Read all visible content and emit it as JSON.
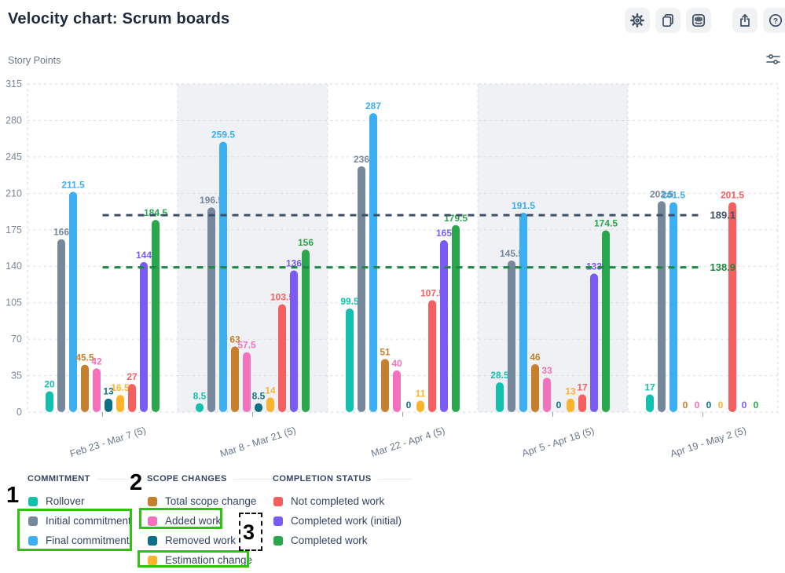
{
  "header": {
    "title": "Velocity chart: Scrum boards",
    "toolbar": {
      "icons": [
        "settings-icon",
        "copy-icon",
        "intercom-icon",
        "export-icon",
        "help-icon"
      ],
      "help_glyph": "?"
    }
  },
  "chart_data": {
    "type": "bar",
    "title": "Velocity chart: Scrum boards",
    "xlabel": "",
    "ylabel": "Story Points",
    "ylim": [
      0,
      315
    ],
    "ytick_step": 35,
    "grid": true,
    "shaded_bands": [
      1,
      3
    ],
    "categories": [
      "Feb 23 - Mar 7 (5)",
      "Mar 8 - Mar 21 (5)",
      "Mar 22 - Apr 4 (5)",
      "Apr 5 - Apr 18 (5)",
      "Apr 19 - May 2 (5)"
    ],
    "series": [
      {
        "name": "Rollover",
        "color": "#12c1ad",
        "values": [
          20,
          8.5,
          99.5,
          28.5,
          17
        ]
      },
      {
        "name": "Initial commitment",
        "color": "#76889b",
        "values": [
          166,
          196.5,
          236,
          145.5,
          202.5
        ]
      },
      {
        "name": "Final commitment",
        "color": "#3caef2",
        "values": [
          211.5,
          259.5,
          287,
          191.5,
          201.5
        ]
      },
      {
        "name": "Total scope change",
        "color": "#c67f2d",
        "values": [
          45.5,
          63,
          51,
          46,
          0
        ]
      },
      {
        "name": "Added work",
        "color": "#f472bd",
        "values": [
          42,
          57.5,
          40,
          33,
          0
        ]
      },
      {
        "name": "Removed work",
        "color": "#0d7087",
        "values": [
          13,
          8.5,
          0,
          0,
          0
        ]
      },
      {
        "name": "Estimation change",
        "color": "#fbb42c",
        "values": [
          16.5,
          14,
          11,
          13,
          0
        ]
      },
      {
        "name": "Not completed work",
        "color": "#f55f5f",
        "values": [
          27,
          103.5,
          107.5,
          17,
          201.5
        ]
      },
      {
        "name": "Completed work (initial)",
        "color": "#7a5cf4",
        "values": [
          144,
          136,
          165,
          133,
          0
        ]
      },
      {
        "name": "Completed work",
        "color": "#2aa64c",
        "values": [
          184.5,
          156,
          179.5,
          174.5,
          0
        ]
      }
    ],
    "average_lines": [
      {
        "label": "189.1",
        "value": 189.1,
        "color": "#3e5065"
      },
      {
        "label": "138.9",
        "value": 138.9,
        "color": "#1f8744"
      }
    ],
    "legend_position": "bottom"
  },
  "legend": {
    "groups": [
      {
        "title": "COMMITMENT",
        "items": [
          {
            "label": "Rollover",
            "color": "#12c1ad"
          },
          {
            "label": "Initial commitment",
            "color": "#76889b"
          },
          {
            "label": "Final commitment",
            "color": "#3caef2"
          }
        ]
      },
      {
        "title": "SCOPE CHANGES",
        "items": [
          {
            "label": "Total scope change",
            "color": "#c67f2d"
          },
          {
            "label": "Added work",
            "color": "#f472bd"
          },
          {
            "label": "Removed work",
            "color": "#0d7087"
          },
          {
            "label": "Estimation change",
            "color": "#fbb42c"
          }
        ]
      },
      {
        "title": "COMPLETION STATUS",
        "items": [
          {
            "label": "Not completed work",
            "color": "#f55f5f"
          },
          {
            "label": "Completed work (initial)",
            "color": "#7a5cf4"
          },
          {
            "label": "Completed work",
            "color": "#2aa64c"
          }
        ]
      }
    ]
  },
  "annotations": {
    "num1": "1",
    "num2": "2",
    "num3": "3"
  }
}
